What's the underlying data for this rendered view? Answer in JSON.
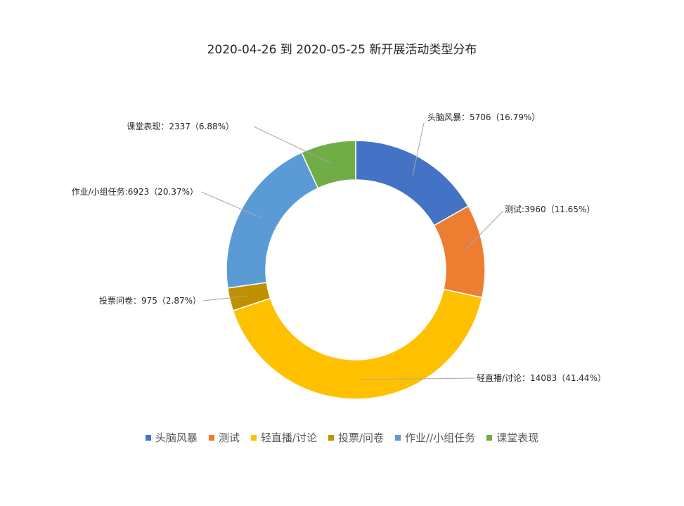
{
  "chart_data": {
    "type": "pie",
    "title": "2020-04-26 到 2020-05-25 新开展活动类型分布",
    "series": [
      {
        "name": "头脑风暴",
        "value": 5706,
        "percent": "16.79%",
        "color": "#4472C4",
        "label": "头脑风暴：5706（16.79%）"
      },
      {
        "name": "测试",
        "value": 3960,
        "percent": "11.65%",
        "color": "#ED7D31",
        "label": "测试:3960（11.65%）"
      },
      {
        "name": "轻直播/讨论",
        "value": 14083,
        "percent": "41.44%",
        "color": "#FFC000",
        "label": "轻直播/讨论：14083（41.44%）"
      },
      {
        "name": "投票/问卷",
        "value": 975,
        "percent": "2.87%",
        "color": "#BF9000",
        "label": "投票问卷：975（2.87%）"
      },
      {
        "name": "作业//小组任务",
        "value": 6923,
        "percent": "20.37%",
        "color": "#5B9BD5",
        "label": "作业/小组任务:6923（20.37%）"
      },
      {
        "name": "课堂表现",
        "value": 2337,
        "percent": "6.88%",
        "color": "#70AD47",
        "label": "课堂表现：2337（6.88%）"
      }
    ],
    "legend_position": "bottom"
  }
}
